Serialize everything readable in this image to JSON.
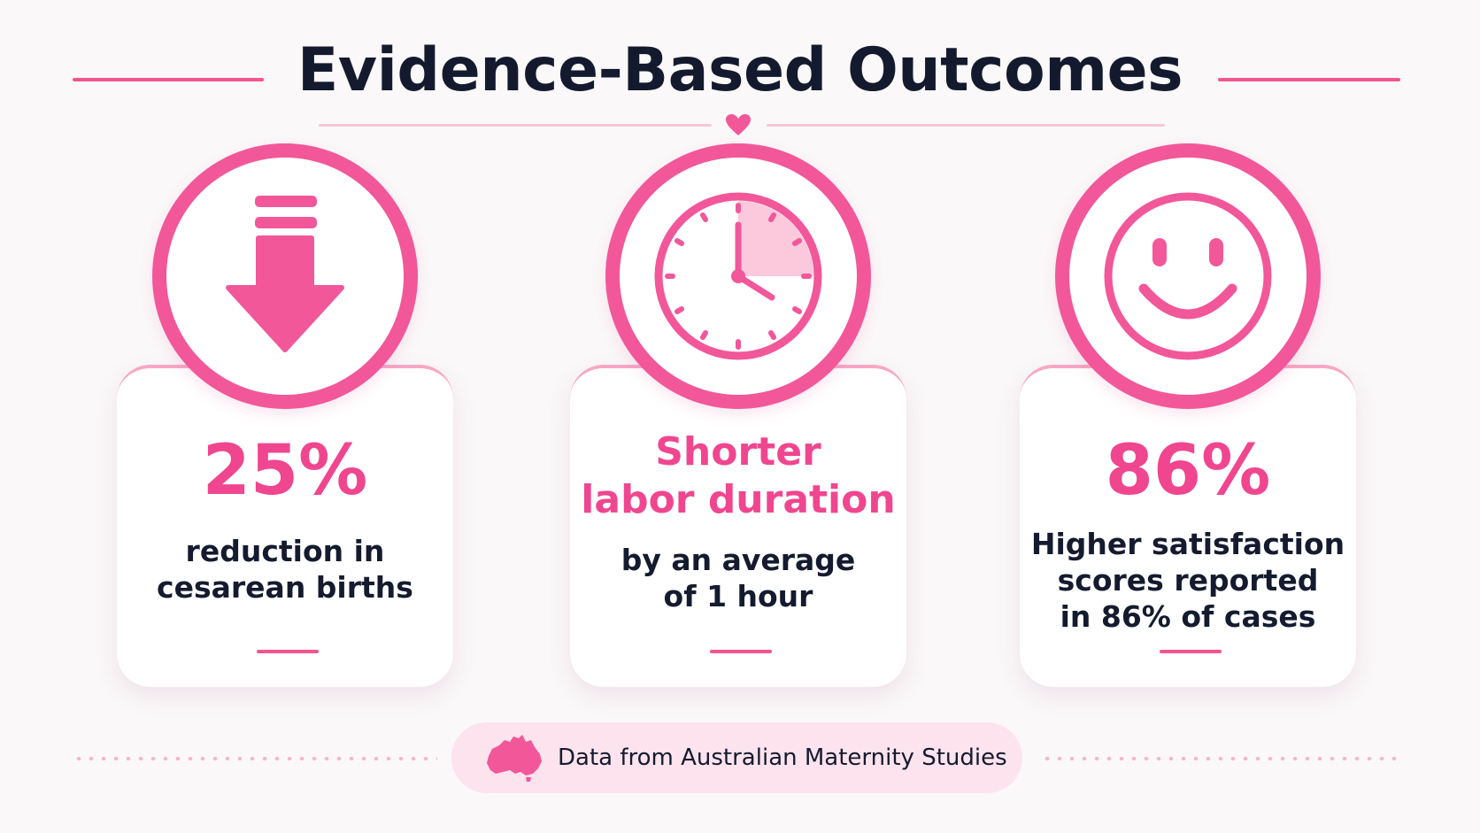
{
  "header": {
    "title": "Evidence-Based Outcomes"
  },
  "colors": {
    "accent": "#f2579a",
    "accent_light": "#fde3ee",
    "text_dark": "#151b2f"
  },
  "cards": [
    {
      "icon": "down-arrow-icon",
      "stat": "25%",
      "description": [
        "reduction in",
        "cesarean births"
      ]
    },
    {
      "icon": "clock-icon",
      "stat": [
        "Shorter",
        "labor duration"
      ],
      "description": [
        "by an average",
        "of 1 hour"
      ]
    },
    {
      "icon": "smiley-face-icon",
      "stat": "86%",
      "description": [
        "Higher satisfaction",
        "scores reported",
        "in 86% of cases"
      ]
    }
  ],
  "footer": {
    "icon": "australia-map-icon",
    "source_text": "Data from Australian Maternity Studies"
  }
}
